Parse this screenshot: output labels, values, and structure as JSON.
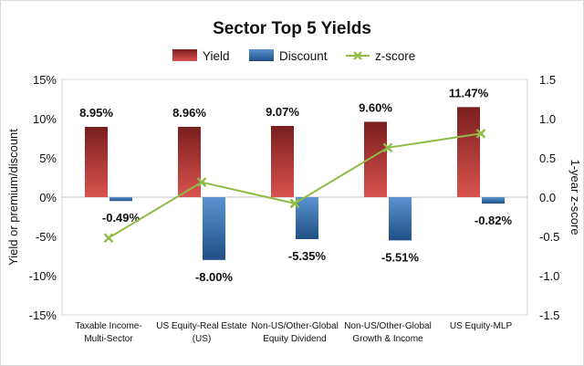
{
  "chart_data": {
    "type": "bar",
    "title": "Sector Top 5 Yields",
    "categories": [
      [
        "Taxable Income-",
        "Multi-Sector"
      ],
      [
        "US Equity-Real Estate",
        "(US)"
      ],
      [
        "Non-US/Other-Global",
        "Equity Dividend"
      ],
      [
        "Non-US/Other-Global",
        "Growth & Income"
      ],
      [
        "US Equity-MLP"
      ]
    ],
    "series": [
      {
        "name": "Yield",
        "kind": "bar",
        "axis": "left",
        "values": [
          8.95,
          8.96,
          9.07,
          9.6,
          11.47
        ],
        "labels": [
          "8.95%",
          "8.96%",
          "9.07%",
          "9.60%",
          "11.47%"
        ],
        "color": "#a83232"
      },
      {
        "name": "Discount",
        "kind": "bar",
        "axis": "left",
        "values": [
          -0.49,
          -8.0,
          -5.35,
          -5.51,
          -0.82
        ],
        "labels": [
          "-0.49%",
          "-8.00%",
          "-5.35%",
          "-5.51%",
          "-0.82%"
        ],
        "color": "#2f6aa8"
      },
      {
        "name": "z-score",
        "kind": "line",
        "axis": "right",
        "values": [
          -0.52,
          0.19,
          -0.08,
          0.63,
          0.81
        ],
        "color": "#8fbc45"
      }
    ],
    "ylabel": "Yield or premium/discount",
    "y2label": "1-year z-score",
    "ylim": [
      -15,
      15
    ],
    "y2lim": [
      -1.5,
      1.5
    ],
    "yticks": [
      "-15%",
      "-10%",
      "-5%",
      "0%",
      "5%",
      "10%",
      "15%"
    ],
    "y2ticks": [
      "-1.5",
      "-1.0",
      "-0.5",
      "0.0",
      "0.5",
      "1.0",
      "1.5"
    ],
    "legend": "top",
    "grid": false
  }
}
